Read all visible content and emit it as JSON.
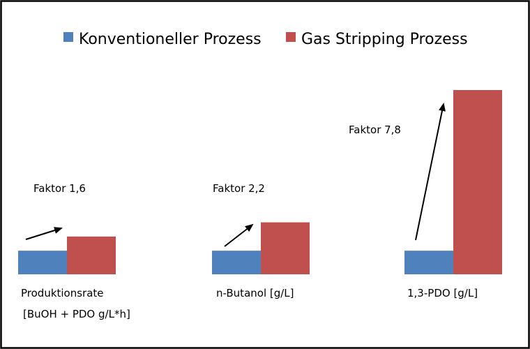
{
  "chart_data": {
    "type": "bar",
    "title": "",
    "xlabel": "",
    "ylabel": "",
    "ylim": [
      0,
      7.8
    ],
    "grid": false,
    "legend_position": "top",
    "colors": [
      "#4f81bd",
      "#c0504d"
    ],
    "categories": [
      [
        "Produktionsrate",
        "[BuOH + PDO g/L*h]"
      ],
      [
        "n-Butanol [g/L]"
      ],
      [
        "1,3-PDO [g/L]"
      ]
    ],
    "series": [
      {
        "name": "Konventioneller Prozess",
        "values": [
          1,
          1,
          1
        ]
      },
      {
        "name": "Gas Stripping Prozess",
        "values": [
          1.6,
          2.2,
          7.8
        ]
      }
    ],
    "annotations": [
      "Faktor 1,6",
      "Faktor 2,2",
      "Faktor 7,8"
    ]
  }
}
